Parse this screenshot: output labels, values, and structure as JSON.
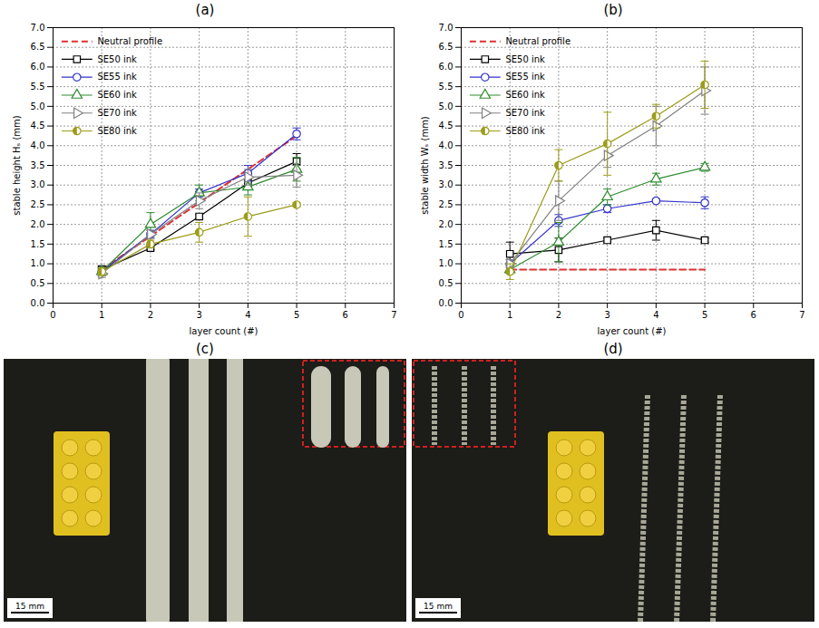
{
  "chart_data": [
    {
      "type": "line",
      "title": "(a)",
      "x_label": "layer count (#)",
      "y_label": "stable height Hₛ (mm)",
      "x": [
        1,
        2,
        3,
        4,
        5
      ],
      "xlim": [
        0,
        7
      ],
      "xticks": [
        0,
        1,
        2,
        3,
        4,
        5,
        6,
        7
      ],
      "ylim": [
        0,
        7
      ],
      "yticks": [
        {
          "value": 0,
          "label": "0.0"
        },
        0.5,
        {
          "value": 1,
          "label": "1.0"
        },
        1.5,
        {
          "value": 2,
          "label": "2.0"
        },
        2.5,
        {
          "value": 3,
          "label": "3.0"
        },
        3.5,
        {
          "value": 4,
          "label": "4.0"
        },
        4.5,
        {
          "value": 5,
          "label": "5.0"
        },
        5.5,
        {
          "value": 6,
          "label": "6.0"
        },
        6.5,
        {
          "value": 7,
          "label": "7.0"
        }
      ],
      "grid": true,
      "legend": "upper left",
      "series": [
        {
          "name": "Neutral profile",
          "color": "#e03030",
          "line_style": "dashed",
          "marker": "none",
          "values": [
            0.85,
            1.7,
            2.55,
            3.4,
            4.25
          ]
        },
        {
          "name": "SE50 ink",
          "color": "#000000",
          "line_style": "solid",
          "marker": "square",
          "values": [
            0.85,
            1.4,
            2.2,
            3.05,
            3.6
          ],
          "errors": [
            0.1,
            0.05,
            0.05,
            0.1,
            0.2
          ]
        },
        {
          "name": "SE55 ink",
          "color": "#3333cc",
          "line_style": "solid",
          "marker": "circle",
          "values": [
            0.8,
            1.75,
            2.8,
            3.3,
            4.3
          ],
          "errors": [
            0.1,
            0.1,
            0.1,
            0.2,
            0.15
          ]
        },
        {
          "name": "SE60 ink",
          "color": "#2e8b2e",
          "line_style": "solid",
          "marker": "triangle",
          "values": [
            0.8,
            2.0,
            2.8,
            2.95,
            3.4
          ],
          "errors": [
            0.1,
            0.3,
            0.2,
            0.2,
            0.3
          ]
        },
        {
          "name": "SE70 ink",
          "color": "#808080",
          "line_style": "solid",
          "marker": "triangle-right",
          "values": [
            0.75,
            1.75,
            2.6,
            3.2,
            3.25
          ],
          "errors": [
            0.1,
            0.1,
            0.2,
            0.2,
            0.3
          ]
        },
        {
          "name": "SE80 ink",
          "color": "#9c9c1a",
          "line_style": "solid",
          "marker": "half-circle",
          "values": [
            0.8,
            1.5,
            1.8,
            2.2,
            2.5
          ],
          "errors": [
            0.1,
            0.1,
            0.25,
            0.5,
            0.05
          ]
        }
      ]
    },
    {
      "type": "line",
      "title": "(b)",
      "x_label": "layer count (#)",
      "y_label": "stable width Wₛ (mm)",
      "x": [
        1,
        2,
        3,
        4,
        5
      ],
      "xlim": [
        0,
        7
      ],
      "xticks": [
        0,
        1,
        2,
        3,
        4,
        5,
        6,
        7
      ],
      "ylim": [
        0,
        7
      ],
      "yticks": [
        {
          "value": 0,
          "label": "0.0"
        },
        0.5,
        {
          "value": 1,
          "label": "1.0"
        },
        1.5,
        {
          "value": 2,
          "label": "2.0"
        },
        2.5,
        {
          "value": 3,
          "label": "3.0"
        },
        3.5,
        {
          "value": 4,
          "label": "4.0"
        },
        4.5,
        {
          "value": 5,
          "label": "5.0"
        },
        5.5,
        {
          "value": 6,
          "label": "6.0"
        },
        6.5,
        {
          "value": 7,
          "label": "7.0"
        }
      ],
      "grid": true,
      "legend": "upper left",
      "series": [
        {
          "name": "Neutral profile",
          "color": "#e03030",
          "line_style": "dashed",
          "marker": "none",
          "values": [
            0.85,
            0.85,
            0.85,
            0.85,
            0.85
          ]
        },
        {
          "name": "SE50 ink",
          "color": "#000000",
          "line_style": "solid",
          "marker": "square",
          "values": [
            1.25,
            1.35,
            1.6,
            1.85,
            1.6
          ],
          "errors": [
            0.3,
            0.3,
            0.05,
            0.25,
            0.05
          ]
        },
        {
          "name": "SE55 ink",
          "color": "#3333cc",
          "line_style": "solid",
          "marker": "circle",
          "values": [
            1.0,
            2.1,
            2.4,
            2.6,
            2.55
          ],
          "errors": [
            0.1,
            0.15,
            0.1,
            0.05,
            0.15
          ]
        },
        {
          "name": "SE60 ink",
          "color": "#2e8b2e",
          "line_style": "solid",
          "marker": "triangle",
          "values": [
            0.85,
            1.55,
            2.7,
            3.15,
            3.45
          ],
          "errors": [
            0.1,
            0.5,
            0.2,
            0.15,
            0.1
          ]
        },
        {
          "name": "SE70 ink",
          "color": "#808080",
          "line_style": "solid",
          "marker": "triangle-right",
          "values": [
            1.0,
            2.6,
            3.75,
            4.5,
            5.4
          ],
          "errors": [
            0.1,
            0.5,
            0.3,
            0.5,
            0.6
          ]
        },
        {
          "name": "SE80 ink",
          "color": "#9c9c1a",
          "line_style": "solid",
          "marker": "half-circle",
          "values": [
            0.8,
            3.5,
            4.05,
            4.75,
            5.55
          ],
          "errors": [
            0.2,
            0.4,
            0.8,
            0.3,
            0.6
          ]
        }
      ]
    }
  ],
  "photos": [
    {
      "label": "(c)",
      "scale_bar": "15 mm"
    },
    {
      "label": "(d)",
      "scale_bar": "15 mm"
    }
  ]
}
